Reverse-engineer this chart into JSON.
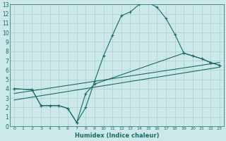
{
  "xlabel": "Humidex (Indice chaleur)",
  "background_color": "#cce8e8",
  "grid_color": "#aacfcf",
  "line_color": "#1a6b6b",
  "xlim": [
    -0.5,
    23.5
  ],
  "ylim": [
    0,
    13
  ],
  "xticks": [
    0,
    1,
    2,
    3,
    4,
    5,
    6,
    7,
    8,
    9,
    10,
    11,
    12,
    13,
    14,
    15,
    16,
    17,
    18,
    19,
    20,
    21,
    22,
    23
  ],
  "yticks": [
    0,
    1,
    2,
    3,
    4,
    5,
    6,
    7,
    8,
    9,
    10,
    11,
    12,
    13
  ],
  "curve1_x": [
    0,
    2,
    3,
    4,
    5,
    6,
    7,
    8,
    9,
    10,
    11,
    12,
    13,
    14,
    15,
    16,
    17,
    18,
    19,
    20,
    21,
    22,
    23
  ],
  "curve1_y": [
    4.0,
    3.9,
    2.2,
    2.2,
    2.2,
    1.9,
    0.4,
    2.0,
    4.8,
    7.5,
    9.7,
    11.8,
    12.2,
    13.0,
    13.2,
    12.7,
    11.5,
    9.8,
    7.8,
    7.5,
    7.2,
    6.8,
    6.5
  ],
  "curve2_x": [
    0,
    23
  ],
  "curve2_y": [
    3.5,
    6.8
  ],
  "curve3_x": [
    0,
    23
  ],
  "curve3_y": [
    2.8,
    6.3
  ],
  "curve4_x": [
    0,
    2,
    3,
    4,
    5,
    6,
    7,
    8,
    9,
    19,
    20,
    21,
    22,
    23
  ],
  "curve4_y": [
    4.0,
    3.9,
    2.2,
    2.2,
    2.2,
    1.9,
    0.4,
    3.5,
    4.5,
    7.8,
    7.5,
    7.2,
    6.8,
    6.5
  ]
}
